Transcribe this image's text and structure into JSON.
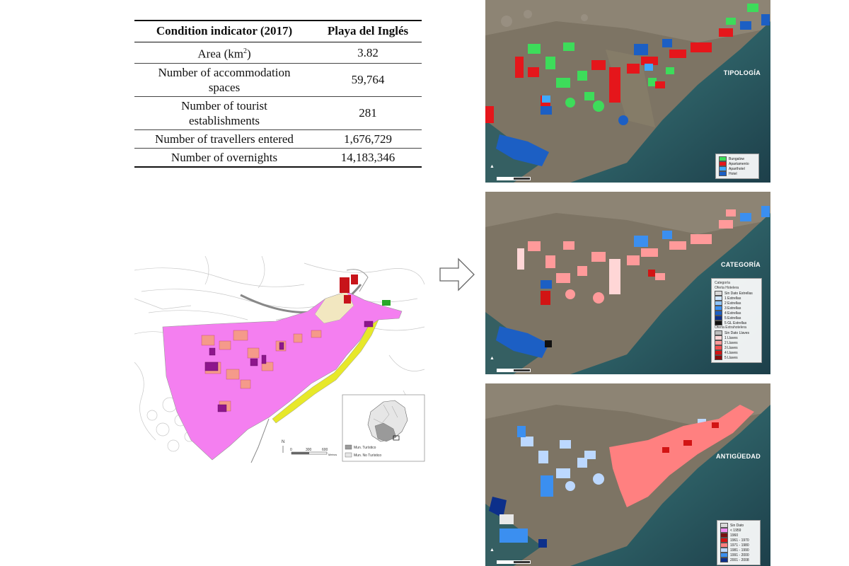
{
  "table": {
    "header": {
      "indicator": "Condition indicator (2017)",
      "place": "Playa del Inglés"
    },
    "rows": [
      {
        "label": "Area (km",
        "sup": "2",
        "label_end": ")",
        "value": "3.82"
      },
      {
        "label_line1": "Number of accommodation",
        "label_line2": "spaces",
        "value": "59,764"
      },
      {
        "label_line1": "Number of tourist",
        "label_line2": "establishments",
        "value": "281"
      },
      {
        "label": "Number of travellers entered",
        "value": "1,676,729"
      },
      {
        "label": "Number of overnights",
        "value": "14,183,346"
      }
    ]
  },
  "left_map": {
    "scale_labels": [
      "0",
      "300",
      "600"
    ],
    "scale_unit": "Metros",
    "north": "N",
    "legend": [
      {
        "label": "Mun. Turístico",
        "color": "#9a9a9a"
      },
      {
        "label": "Mun. No Turístico",
        "color": "#e6e6e6"
      }
    ]
  },
  "panels": [
    {
      "title": "TIPOLOGÍA",
      "legend": [
        {
          "label": "Bungalow",
          "color": "#3ddc5a"
        },
        {
          "label": "Apartamento",
          "color": "#e5161b"
        },
        {
          "label": "Aparthotel",
          "color": "#3fa9ff"
        },
        {
          "label": "Hotel",
          "color": "#1c5fc4"
        }
      ]
    },
    {
      "title": "CATEGORÍA",
      "legend_header1": "Categoría",
      "legend_header2": "Oferta Hotelera",
      "legend_header3": "Oferta Extrahotelera",
      "legend_hotel": [
        {
          "label": "Sin Dato Estrellas",
          "color": "#d9d9d9"
        },
        {
          "label": "1 Estrellas",
          "color": "#cfe6ff"
        },
        {
          "label": "2 Estrellas",
          "color": "#8ec5ff"
        },
        {
          "label": "3 Estrellas",
          "color": "#3b8ff0"
        },
        {
          "label": "4 Estrellas",
          "color": "#1c5fc4"
        },
        {
          "label": "5 Estrellas",
          "color": "#0c2f8a"
        },
        {
          "label": "5 GL Estrellas",
          "color": "#111111"
        }
      ],
      "legend_extra": [
        {
          "label": "Sin Dato Llaves",
          "color": "#bdbdbd"
        },
        {
          "label": "1 Llaves",
          "color": "#ffd6d6"
        },
        {
          "label": "2 Llaves",
          "color": "#ff9a9a"
        },
        {
          "label": "3 Llaves",
          "color": "#f35050"
        },
        {
          "label": "4 Llaves",
          "color": "#d21414"
        },
        {
          "label": "5 Llaves",
          "color": "#8c0a0a"
        }
      ]
    },
    {
      "title": "ANTIGÜEDAD",
      "legend": [
        {
          "label": "Sin Dato",
          "color": "#d9d9d9"
        },
        {
          "label": "< 1959",
          "color": "#f08ef0"
        },
        {
          "label": "1960",
          "color": "#7a1010"
        },
        {
          "label": "1961 - 1970",
          "color": "#d21414"
        },
        {
          "label": "1971 - 1980",
          "color": "#ff8080"
        },
        {
          "label": "1981 - 1990",
          "color": "#bcd8ff"
        },
        {
          "label": "1991 - 2000",
          "color": "#3b8ff0"
        },
        {
          "label": "2001 - 2008",
          "color": "#0c2f8a"
        }
      ]
    }
  ]
}
